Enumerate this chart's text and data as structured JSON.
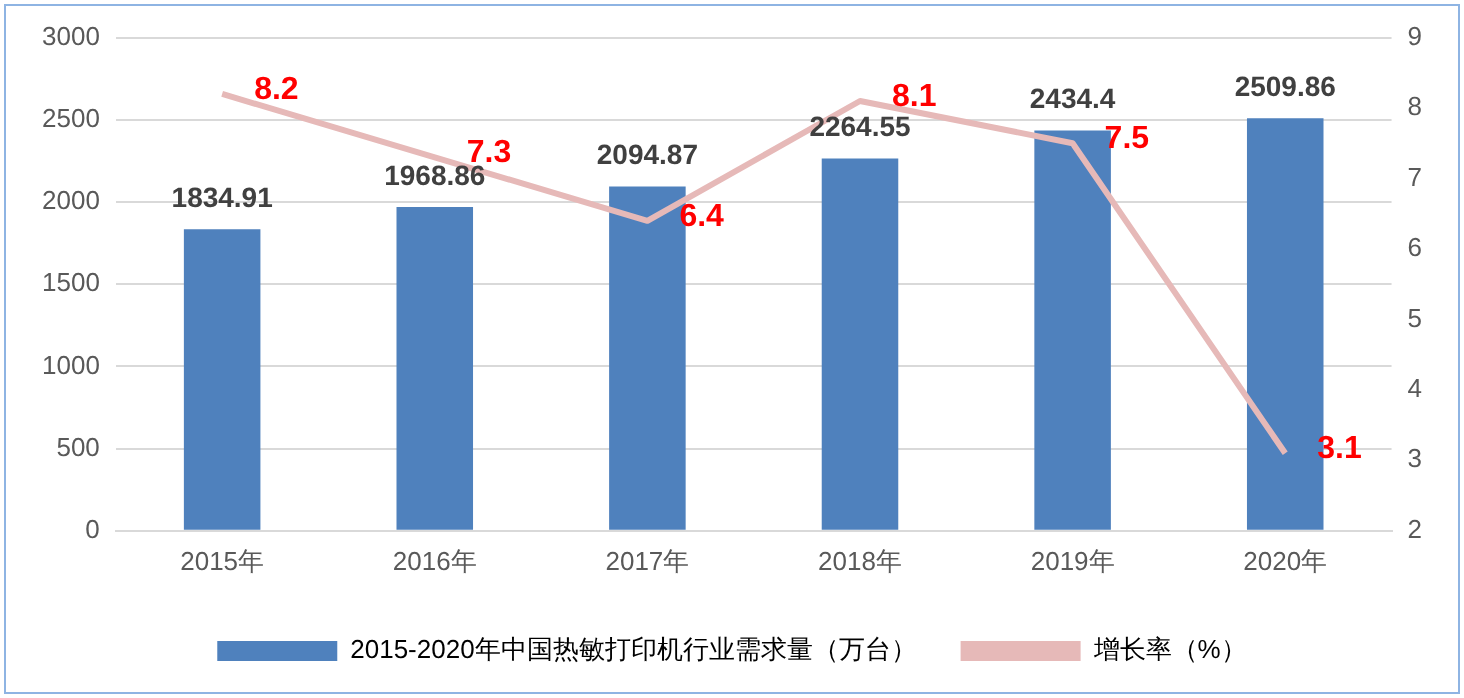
{
  "chart_data": {
    "type": "bar",
    "categories": [
      "2015年",
      "2016年",
      "2017年",
      "2018年",
      "2019年",
      "2020年"
    ],
    "series": [
      {
        "name": "2015-2020年中国热敏打印机行业需求量（万台）",
        "color": "#4f81bd",
        "values": [
          1834.91,
          1968.86,
          2094.87,
          2264.55,
          2434.4,
          2509.86
        ]
      },
      {
        "name": "增长率（%）",
        "type": "line",
        "axis": "y2",
        "color": "#e6b9b8",
        "values": [
          8.2,
          7.3,
          6.4,
          8.1,
          7.5,
          3.1
        ]
      }
    ],
    "ylim": [
      0,
      3000
    ],
    "yticks": [
      0,
      500,
      1000,
      1500,
      2000,
      2500,
      3000
    ],
    "y2lim": [
      2,
      9
    ],
    "y2ticks": [
      2,
      3,
      4,
      5,
      6,
      7,
      8,
      9
    ],
    "grid": "y",
    "legend": "bottom",
    "data_labels": true,
    "marker": "none"
  }
}
